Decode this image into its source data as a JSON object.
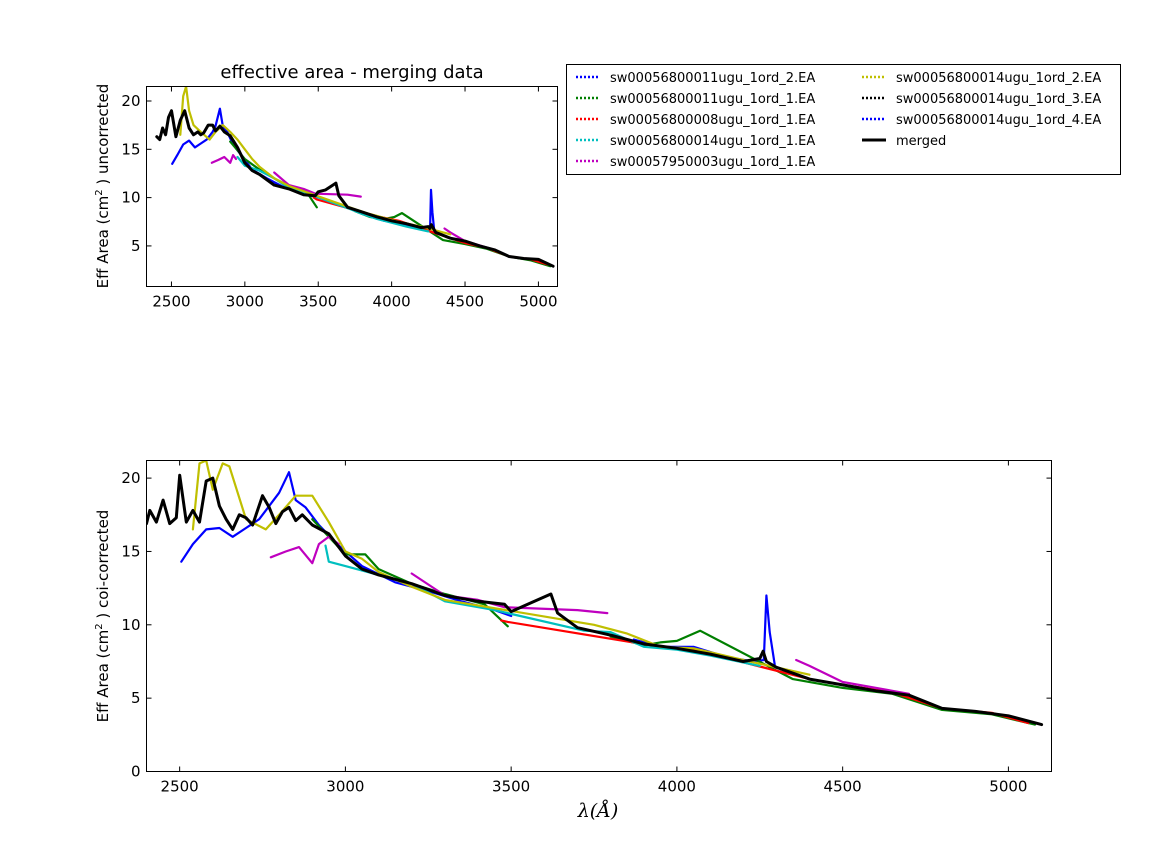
{
  "figure": {
    "title": "effective area - merging data",
    "top_ylabel_pre": "Eff Area (cm",
    "top_ylabel_sup": "2",
    "top_ylabel_post": ") uncorrected",
    "bottom_ylabel_pre": "Eff Area (cm",
    "bottom_ylabel_sup": "2",
    "bottom_ylabel_post": ") coi-corrected",
    "xlabel": "λ(Å)"
  },
  "legend": {
    "placement": "top-right of top panel, two columns",
    "entries": [
      {
        "label": "sw00056800011ugu_1ord_2.EA",
        "color": "#0000ff",
        "style": "dotted"
      },
      {
        "label": "sw00056800011ugu_1ord_1.EA",
        "color": "#007f00",
        "style": "dotted"
      },
      {
        "label": "sw00056800008ugu_1ord_1.EA",
        "color": "#ff0000",
        "style": "dotted"
      },
      {
        "label": "sw00056800014ugu_1ord_1.EA",
        "color": "#00bfbf",
        "style": "dotted"
      },
      {
        "label": "sw00057950003ugu_1ord_1.EA",
        "color": "#bf00bf",
        "style": "dotted"
      },
      {
        "label": "sw00056800014ugu_1ord_2.EA",
        "color": "#bfbf00",
        "style": "dotted"
      },
      {
        "label": "sw00056800014ugu_1ord_3.EA",
        "color": "#000000",
        "style": "dotted"
      },
      {
        "label": "sw00056800014ugu_1ord_4.EA",
        "color": "#0000ff",
        "style": "dotted"
      },
      {
        "label": "merged",
        "color": "#000000",
        "style": "solid"
      }
    ]
  },
  "chart_data": [
    {
      "type": "line",
      "panel": "top",
      "title": "effective area - merging data",
      "xlabel": "",
      "ylabel": "Eff Area (cm2 ) uncorrected",
      "xlim": [
        2330,
        5130
      ],
      "ylim": [
        0.8,
        21.5
      ],
      "xticks": [
        2500,
        3000,
        3500,
        4000,
        4500,
        5000
      ],
      "yticks": [
        5,
        10,
        15,
        20
      ],
      "series": [
        {
          "name": "sw00056800011ugu_1ord_2.EA",
          "color": "#0000ff",
          "x": [
            2505,
            2540,
            2580,
            2620,
            2660,
            2700,
            2740,
            2780,
            2800,
            2830,
            2850,
            2880,
            2920,
            2980,
            3050,
            3150,
            3250,
            3350,
            3450,
            3500
          ],
          "y": [
            13.5,
            14.4,
            15.5,
            15.9,
            15.2,
            15.6,
            16.0,
            16.8,
            17.4,
            19.2,
            17.4,
            16.8,
            15.5,
            14.3,
            12.9,
            12.0,
            11.2,
            10.7,
            10.2,
            10.0
          ]
        },
        {
          "name": "sw00056800011ugu_1ord_2.EA (tail)",
          "color": "#0000ff",
          "x": [
            3870,
            3950,
            4050,
            4150,
            4230,
            4262,
            4268,
            4278,
            4290
          ],
          "y": [
            8.0,
            7.6,
            7.4,
            7.0,
            6.8,
            6.9,
            10.8,
            8.5,
            6.6
          ]
        },
        {
          "name": "sw00056800011ugu_1ord_1.EA",
          "color": "#007f00",
          "x": [
            2900,
            3000,
            3100,
            3200,
            3300,
            3420,
            3490
          ],
          "y": [
            15.8,
            14.0,
            12.9,
            12.0,
            11.2,
            10.6,
            9.0
          ]
        },
        {
          "name": "sw00056800011ugu_1ord_1.EA (tail)",
          "color": "#007f00",
          "x": [
            3750,
            3850,
            3950,
            4020,
            4070,
            4350,
            4500,
            4650,
            4800,
            4950,
            5080
          ],
          "y": [
            8.6,
            8.0,
            7.8,
            8.0,
            8.4,
            5.6,
            5.2,
            4.7,
            3.9,
            3.5,
            2.9
          ]
        },
        {
          "name": "sw00056800008ugu_1ord_1.EA",
          "color": "#ff0000",
          "x": [
            3470,
            3490,
            3920,
            4050,
            4400,
            4500,
            4650,
            4800,
            4950,
            5060
          ],
          "y": [
            10.0,
            9.8,
            8.0,
            7.6,
            5.8,
            5.3,
            4.8,
            3.9,
            3.6,
            3.1
          ]
        },
        {
          "name": "sw00056800014ugu_1ord_1.EA",
          "color": "#00bfbf",
          "x": [
            2950,
            3000,
            3100,
            3200,
            3300,
            3450,
            3720,
            3800,
            3900,
            4000,
            4100,
            4250
          ],
          "y": [
            14.2,
            13.3,
            12.8,
            12.0,
            11.0,
            10.3,
            8.8,
            8.3,
            7.8,
            7.4,
            7.0,
            6.5
          ]
        },
        {
          "name": "sw00057950003ugu_1ord_1.EA",
          "color": "#bf00bf",
          "x": [
            2775,
            2820,
            2860,
            2900,
            2920,
            2940
          ],
          "y": [
            13.6,
            13.9,
            14.2,
            13.6,
            14.4,
            14.0
          ]
        },
        {
          "name": "sw00057950003ugu_1ord_1.EA (2)",
          "color": "#bf00bf",
          "x": [
            3200,
            3300,
            3400,
            3480,
            3700,
            3790
          ],
          "y": [
            12.6,
            11.3,
            10.9,
            10.4,
            10.3,
            10.1
          ]
        },
        {
          "name": "sw00057950003ugu_1ord_1.EA (3)",
          "color": "#bf00bf",
          "x": [
            4360,
            4400,
            4500,
            4700
          ],
          "y": [
            6.8,
            6.4,
            5.5,
            4.6
          ]
        },
        {
          "name": "sw00056800014ugu_1ord_2.EA",
          "color": "#bfbf00",
          "x": [
            2560,
            2580,
            2600,
            2620,
            2650,
            2700,
            2760,
            2800,
            2850,
            2900,
            2950,
            3000,
            3050,
            3100,
            3200,
            3300,
            3750,
            3850,
            3950,
            4050,
            4200,
            4400
          ],
          "y": [
            16.5,
            20.5,
            21.5,
            19.0,
            17.5,
            16.8,
            16.0,
            16.8,
            17.5,
            16.8,
            16.0,
            15.0,
            14.0,
            13.2,
            12.0,
            11.2,
            8.8,
            8.3,
            7.9,
            7.5,
            7.0,
            6.2
          ]
        },
        {
          "name": "merged",
          "color": "#000000",
          "x": [
            2400,
            2420,
            2440,
            2460,
            2480,
            2500,
            2530,
            2560,
            2590,
            2620,
            2650,
            2680,
            2700,
            2720,
            2750,
            2780,
            2800,
            2830,
            2860,
            2900,
            2950,
            3000,
            3050,
            3100,
            3200,
            3300,
            3400,
            3480,
            3500,
            3550,
            3620,
            3640,
            3700,
            3800,
            3900,
            4000,
            4100,
            4200,
            4250,
            4260,
            4270,
            4300,
            4400,
            4500,
            4600,
            4700,
            4800,
            4900,
            5000,
            5100
          ],
          "y": [
            16.3,
            16.0,
            17.2,
            16.5,
            18.3,
            19.0,
            16.3,
            18.0,
            19.0,
            17.2,
            16.5,
            16.8,
            16.5,
            16.7,
            17.5,
            17.5,
            16.9,
            17.4,
            16.8,
            16.4,
            15.2,
            13.6,
            12.8,
            12.4,
            11.3,
            10.9,
            10.3,
            10.2,
            10.6,
            10.8,
            11.5,
            10.2,
            9.0,
            8.5,
            8.0,
            7.6,
            7.3,
            6.9,
            7.0,
            6.8,
            7.2,
            6.4,
            5.8,
            5.5,
            5.0,
            4.6,
            3.9,
            3.7,
            3.6,
            2.9
          ]
        }
      ]
    },
    {
      "type": "line",
      "panel": "bottom",
      "title": "",
      "xlabel": "λ(Å)",
      "ylabel": "Eff Area (cm2 ) coi-corrected",
      "xlim": [
        2400,
        5130
      ],
      "ylim": [
        0,
        21.2
      ],
      "xticks": [
        2500,
        3000,
        3500,
        4000,
        4500,
        5000
      ],
      "yticks": [
        0,
        5,
        10,
        15,
        20
      ],
      "series": [
        {
          "name": "sw00056800011ugu_1ord_2.EA",
          "color": "#0000ff",
          "x": [
            2505,
            2540,
            2580,
            2620,
            2660,
            2700,
            2740,
            2780,
            2800,
            2830,
            2850,
            2880,
            2920,
            2980,
            3050,
            3150,
            3250,
            3350,
            3450,
            3500
          ],
          "y": [
            14.3,
            15.5,
            16.5,
            16.6,
            16.0,
            16.6,
            17.2,
            18.4,
            19.0,
            20.4,
            18.5,
            18.0,
            16.8,
            15.4,
            14.0,
            12.9,
            12.3,
            11.6,
            11.0,
            10.6
          ]
        },
        {
          "name": "sw00056800011ugu_1ord_2.EA (tail)",
          "color": "#0000ff",
          "x": [
            3870,
            3950,
            4050,
            4150,
            4230,
            4262,
            4270,
            4280,
            4295
          ],
          "y": [
            9.0,
            8.5,
            8.5,
            7.8,
            7.5,
            7.6,
            12.0,
            9.5,
            7.3
          ]
        },
        {
          "name": "sw00056800011ugu_1ord_1.EA",
          "color": "#007f00",
          "x": [
            2900,
            3000,
            3060,
            3100,
            3200,
            3300,
            3420,
            3490
          ],
          "y": [
            17.2,
            14.8,
            14.8,
            13.8,
            12.8,
            12.1,
            11.4,
            9.9
          ]
        },
        {
          "name": "sw00056800011ugu_1ord_1.EA (tail)",
          "color": "#007f00",
          "x": [
            3800,
            3900,
            3950,
            4000,
            4070,
            4350,
            4500,
            4650,
            4800,
            4950,
            5080
          ],
          "y": [
            9.2,
            8.6,
            8.8,
            8.9,
            9.6,
            6.3,
            5.7,
            5.3,
            4.2,
            3.9,
            3.2
          ]
        },
        {
          "name": "sw00056800008ugu_1ord_1.EA",
          "color": "#ff0000",
          "x": [
            3470,
            3490,
            3920,
            4050,
            4400,
            4500,
            4650,
            4800,
            4950,
            5060
          ],
          "y": [
            10.3,
            10.2,
            8.6,
            8.3,
            6.3,
            5.9,
            5.4,
            4.3,
            4.0,
            3.3
          ]
        },
        {
          "name": "sw00056800014ugu_1ord_1.EA",
          "color": "#00bfbf",
          "x": [
            2940,
            2950,
            3000,
            3100,
            3200,
            3300,
            3450,
            3720,
            3800,
            3900,
            4000,
            4100,
            4250
          ],
          "y": [
            15.4,
            14.3,
            14.0,
            13.4,
            12.8,
            11.6,
            11.0,
            9.6,
            9.5,
            8.5,
            8.3,
            7.9,
            7.2
          ]
        },
        {
          "name": "sw00057950003ugu_1ord_1.EA",
          "color": "#bf00bf",
          "x": [
            2775,
            2820,
            2860,
            2900,
            2920,
            2950,
            2980
          ],
          "y": [
            14.6,
            15.0,
            15.3,
            14.2,
            15.5,
            16.0,
            15.5
          ]
        },
        {
          "name": "sw00057950003ugu_1ord_1.EA (2)",
          "color": "#bf00bf",
          "x": [
            3200,
            3300,
            3400,
            3480,
            3700,
            3790
          ],
          "y": [
            13.5,
            12.0,
            11.7,
            11.2,
            11.0,
            10.8
          ]
        },
        {
          "name": "sw00057950003ugu_1ord_1.EA (3)",
          "color": "#bf00bf",
          "x": [
            4360,
            4400,
            4500,
            4700
          ],
          "y": [
            7.6,
            7.2,
            6.1,
            5.3
          ]
        },
        {
          "name": "sw00056800014ugu_1ord_2.EA",
          "color": "#bfbf00",
          "x": [
            2540,
            2560,
            2580,
            2600,
            2630,
            2650,
            2700,
            2760,
            2800,
            2850,
            2900,
            2950,
            3000,
            3050,
            3100,
            3200,
            3300,
            3750,
            3850,
            3950,
            4050,
            4200,
            4400
          ],
          "y": [
            16.5,
            21.0,
            21.2,
            19.2,
            21.0,
            20.8,
            17.2,
            16.5,
            17.5,
            18.8,
            18.8,
            17.0,
            15.0,
            14.5,
            13.6,
            12.6,
            11.7,
            10.0,
            9.4,
            8.5,
            8.4,
            7.6,
            6.6
          ]
        },
        {
          "name": "merged",
          "color": "#000000",
          "x": [
            2400,
            2410,
            2430,
            2450,
            2470,
            2490,
            2500,
            2520,
            2540,
            2560,
            2580,
            2600,
            2620,
            2640,
            2660,
            2680,
            2700,
            2720,
            2750,
            2770,
            2790,
            2810,
            2830,
            2850,
            2870,
            2900,
            2950,
            3000,
            3050,
            3100,
            3200,
            3300,
            3400,
            3480,
            3500,
            3550,
            3620,
            3640,
            3700,
            3800,
            3900,
            4000,
            4100,
            4200,
            4250,
            4260,
            4270,
            4300,
            4400,
            4500,
            4600,
            4700,
            4800,
            4900,
            5000,
            5100
          ],
          "y": [
            16.9,
            17.8,
            17.0,
            18.5,
            16.9,
            17.3,
            20.2,
            17.0,
            17.8,
            17.0,
            19.8,
            20.0,
            18.1,
            17.2,
            16.5,
            17.5,
            17.3,
            16.8,
            18.8,
            18.0,
            16.9,
            17.7,
            18.0,
            17.1,
            17.5,
            16.8,
            16.2,
            14.7,
            13.8,
            13.4,
            12.8,
            12.0,
            11.6,
            11.4,
            10.9,
            11.4,
            12.1,
            10.8,
            9.8,
            9.3,
            8.7,
            8.4,
            8.0,
            7.5,
            7.7,
            8.2,
            7.5,
            7.1,
            6.3,
            5.9,
            5.5,
            5.2,
            4.3,
            4.1,
            3.8,
            3.2
          ]
        }
      ]
    }
  ]
}
